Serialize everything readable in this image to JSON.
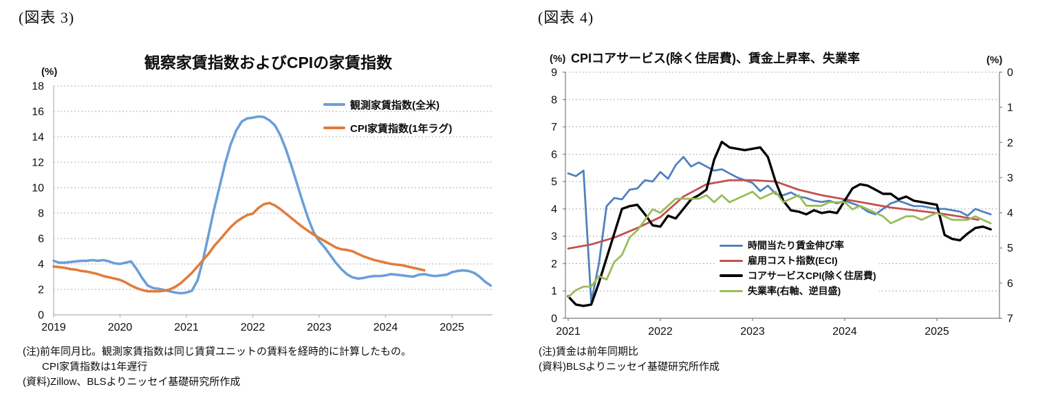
{
  "figure3": {
    "tag": "(図表 3)",
    "title": "観察家賃指数およびCPIの家賃指数",
    "axis_unit_left": "(%)",
    "legend": [
      {
        "label": "観測家賃指数(全米)"
      },
      {
        "label": "CPI家賃指数(1年ラグ)"
      }
    ],
    "notes": [
      "(注)前年同月比。観測家賃指数は同じ賃貸ユニットの賃料を経時的に計算したもの。",
      "CPI家賃指数は1年遅行",
      "(資料)Zillow、BLSよりニッセイ基礎研究所作成"
    ],
    "chart_data": {
      "type": "line",
      "title": "観察家賃指数およびCPIの家賃指数",
      "x_axis": {
        "ticks": [
          2019,
          2020,
          2021,
          2022,
          2023,
          2024,
          2025
        ]
      },
      "y_left": {
        "label": "(%)",
        "min": 0,
        "max": 18,
        "ticks": [
          0,
          2,
          4,
          6,
          8,
          10,
          12,
          14,
          16,
          18
        ],
        "grid": true
      },
      "series": [
        {
          "name": "観測家賃指数(全米)",
          "color": "#6A9FD8",
          "width": 3.6,
          "x_start": 2019.0,
          "x_step": "month",
          "values": [
            4.25,
            4.1,
            4.1,
            4.15,
            4.2,
            4.25,
            4.25,
            4.3,
            4.25,
            4.3,
            4.2,
            4.05,
            4.0,
            4.1,
            4.2,
            3.6,
            2.9,
            2.3,
            2.1,
            2.05,
            1.95,
            1.85,
            1.75,
            1.7,
            1.75,
            1.9,
            2.7,
            4.3,
            6.3,
            8.3,
            10.1,
            11.9,
            13.4,
            14.5,
            15.2,
            15.45,
            15.5,
            15.6,
            15.55,
            15.3,
            14.9,
            14.1,
            13.0,
            11.7,
            10.3,
            8.9,
            7.6,
            6.5,
            5.8,
            5.3,
            4.7,
            4.1,
            3.6,
            3.2,
            2.95,
            2.85,
            2.9,
            3.0,
            3.05,
            3.05,
            3.1,
            3.2,
            3.15,
            3.1,
            3.05,
            3.0,
            3.15,
            3.2,
            3.1,
            3.05,
            3.1,
            3.15,
            3.35,
            3.45,
            3.5,
            3.45,
            3.3,
            3.0,
            2.6,
            2.3
          ]
        },
        {
          "name": "CPI家賃指数(1年ラグ)",
          "color": "#E07C3C",
          "width": 3.6,
          "x_start": 2019.0,
          "x_step": "month",
          "values": [
            3.8,
            3.75,
            3.7,
            3.6,
            3.55,
            3.45,
            3.4,
            3.3,
            3.2,
            3.05,
            2.95,
            2.85,
            2.75,
            2.55,
            2.3,
            2.1,
            1.95,
            1.85,
            1.85,
            1.85,
            1.9,
            2.0,
            2.2,
            2.5,
            2.9,
            3.3,
            3.8,
            4.3,
            4.8,
            5.4,
            5.9,
            6.4,
            6.9,
            7.3,
            7.6,
            7.85,
            7.95,
            8.4,
            8.7,
            8.8,
            8.6,
            8.3,
            7.95,
            7.6,
            7.25,
            6.9,
            6.6,
            6.3,
            6.05,
            5.8,
            5.55,
            5.3,
            5.15,
            5.1,
            5.0,
            4.8,
            4.6,
            4.45,
            4.3,
            4.2,
            4.1,
            4.0,
            3.95,
            3.9,
            3.8,
            3.7,
            3.6,
            3.5
          ]
        }
      ]
    }
  },
  "figure4": {
    "tag": "(図表 4)",
    "title": "CPIコアサービス(除く住居費)、賃金上昇率、失業率",
    "axis_unit_left": "(%)",
    "axis_unit_right": "(%)",
    "legend": [
      {
        "label": "時間当たり賃金伸び率"
      },
      {
        "label": "雇用コスト指数(ECI)"
      },
      {
        "label": "コアサービスCPI(除く住居費)"
      },
      {
        "label": "失業率(右軸、逆目盛)"
      }
    ],
    "notes": [
      "(注)賃金は前年同期比",
      "(資料)BLSよりニッセイ基礎研究所作成"
    ],
    "chart_data": {
      "type": "line",
      "title": "CPIコアサービス(除く住居費)、賃金上昇率、失業率",
      "x_axis": {
        "ticks": [
          2021,
          2022,
          2023,
          2024,
          2025
        ]
      },
      "y_left": {
        "label": "(%)",
        "min": 0,
        "max": 9,
        "ticks": [
          0,
          1,
          2,
          3,
          4,
          5,
          6,
          7,
          8,
          9
        ],
        "grid": true
      },
      "y_right": {
        "label": "(%)",
        "min": 0,
        "max": 7,
        "ticks": [
          0,
          1,
          2,
          3,
          4,
          5,
          6,
          7
        ],
        "inverted": true
      },
      "series": [
        {
          "name": "時間当たり賃金伸び率",
          "color": "#4F81BD",
          "width": 2.8,
          "axis": "left",
          "x_start": 2021.0,
          "x_step": "month",
          "values": [
            5.3,
            5.2,
            5.4,
            0.6,
            2.0,
            4.1,
            4.4,
            4.35,
            4.7,
            4.75,
            5.05,
            5.0,
            5.35,
            5.1,
            5.6,
            5.9,
            5.55,
            5.7,
            5.55,
            5.4,
            5.45,
            5.3,
            5.15,
            5.05,
            4.95,
            4.65,
            4.85,
            4.55,
            4.5,
            4.6,
            4.45,
            4.4,
            4.3,
            4.25,
            4.3,
            4.2,
            4.3,
            4.2,
            4.1,
            3.9,
            3.8,
            4.0,
            4.2,
            4.3,
            4.2,
            4.1,
            4.1,
            4.05,
            4.0,
            4.0,
            3.95,
            3.9,
            3.75,
            4.0,
            3.9,
            3.8
          ]
        },
        {
          "name": "雇用コスト指数(ECI)",
          "color": "#C0504D",
          "width": 2.8,
          "axis": "left",
          "points": [
            [
              2021.0,
              2.55
            ],
            [
              2021.25,
              2.7
            ],
            [
              2021.5,
              2.95
            ],
            [
              2021.75,
              3.3
            ],
            [
              2022.0,
              3.7
            ],
            [
              2022.25,
              4.45
            ],
            [
              2022.5,
              4.9
            ],
            [
              2022.75,
              5.05
            ],
            [
              2023.0,
              5.05
            ],
            [
              2023.25,
              5.0
            ],
            [
              2023.5,
              4.7
            ],
            [
              2023.75,
              4.5
            ],
            [
              2024.0,
              4.35
            ],
            [
              2024.25,
              4.2
            ],
            [
              2024.5,
              4.05
            ],
            [
              2024.75,
              3.95
            ],
            [
              2025.0,
              3.85
            ],
            [
              2025.25,
              3.72
            ],
            [
              2025.45,
              3.6
            ]
          ]
        },
        {
          "name": "コアサービスCPI(除く住居費)",
          "color": "#000000",
          "width": 3.4,
          "axis": "left",
          "x_start": 2021.0,
          "x_step": "month",
          "values": [
            0.8,
            0.5,
            0.45,
            0.5,
            1.3,
            2.2,
            3.1,
            4.0,
            4.1,
            4.15,
            3.8,
            3.4,
            3.35,
            3.75,
            3.65,
            4.0,
            4.35,
            4.5,
            4.7,
            5.8,
            6.45,
            6.25,
            6.2,
            6.15,
            6.2,
            6.25,
            5.9,
            5.0,
            4.3,
            3.95,
            3.9,
            3.8,
            3.95,
            3.85,
            3.9,
            3.85,
            4.3,
            4.75,
            4.9,
            4.85,
            4.7,
            4.55,
            4.55,
            4.35,
            4.45,
            4.3,
            4.25,
            4.2,
            4.15,
            3.05,
            2.9,
            2.85,
            3.1,
            3.3,
            3.35,
            3.25
          ]
        },
        {
          "name": "失業率(右軸、逆目盛)",
          "color": "#9BBB59",
          "width": 2.8,
          "axis": "right",
          "x_start": 2021.0,
          "x_step": "month",
          "values": [
            6.4,
            6.2,
            6.1,
            6.1,
            5.8,
            5.9,
            5.4,
            5.2,
            4.7,
            4.5,
            4.2,
            3.9,
            4.0,
            3.8,
            3.6,
            3.6,
            3.6,
            3.6,
            3.5,
            3.7,
            3.5,
            3.7,
            3.6,
            3.5,
            3.4,
            3.6,
            3.5,
            3.4,
            3.7,
            3.6,
            3.5,
            3.8,
            3.8,
            3.8,
            3.7,
            3.7,
            3.7,
            3.9,
            3.8,
            3.9,
            4.0,
            4.1,
            4.3,
            4.2,
            4.1,
            4.1,
            4.2,
            4.1,
            4.0,
            4.1,
            4.2,
            4.2,
            4.2,
            4.1,
            4.2,
            4.3
          ]
        }
      ]
    }
  }
}
